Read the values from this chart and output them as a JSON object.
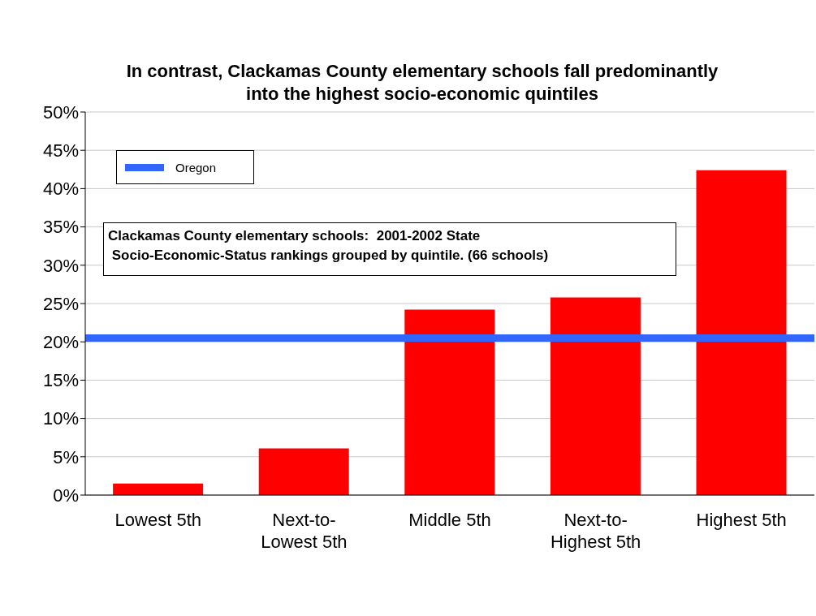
{
  "chart_data": {
    "type": "bar",
    "title": "In contrast, Clackamas County elementary schools fall predominantly into the highest socio-economic quintiles",
    "categories": [
      "Lowest 5th",
      "Next-to-Lowest 5th",
      "Middle 5th",
      "Next-to-Highest 5th",
      "Highest 5th"
    ],
    "values": [
      1.5,
      6.1,
      24.2,
      25.8,
      42.4
    ],
    "color": "#ff0000",
    "ylim": [
      0,
      50
    ],
    "yticks": [
      {
        "value": 0,
        "label": "0%"
      },
      {
        "value": 5,
        "label": "5%"
      },
      {
        "value": 10,
        "label": "10%"
      },
      {
        "value": 15,
        "label": "15%"
      },
      {
        "value": 20,
        "label": "20%"
      },
      {
        "value": 25,
        "label": "25%"
      },
      {
        "value": 30,
        "label": "30%"
      },
      {
        "value": 35,
        "label": "35%"
      },
      {
        "value": 40,
        "label": "40%"
      },
      {
        "value": 45,
        "label": "45%"
      },
      {
        "value": 50,
        "label": "50%"
      }
    ],
    "grid": "y",
    "legend": "top left",
    "ref_lines": [
      {
        "axis": "y",
        "value": 20.5,
        "label": "Oregon",
        "color": "#3366ff"
      }
    ],
    "annotations": [
      "Clackamas County elementary schools:  2001-2002 State\n Socio-Economic-Status rankings grouped by quintile. (66 schools)"
    ]
  }
}
